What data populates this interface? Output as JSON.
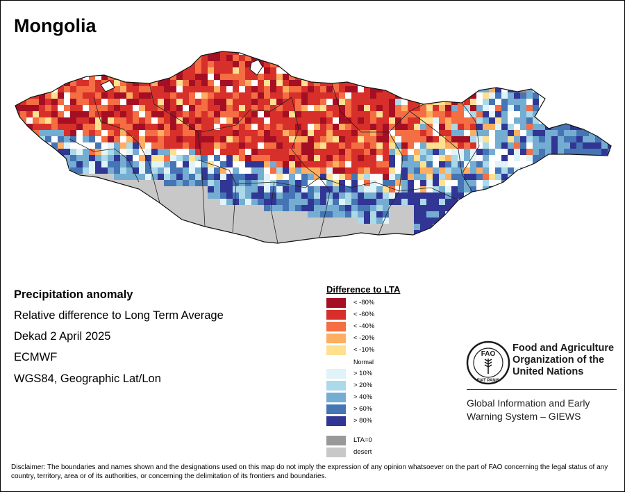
{
  "map": {
    "title": "Mongolia",
    "info_lines": [
      "Precipitation anomaly",
      "Relative difference to Long Term Average",
      "Dekad 2 April 2025",
      "ECMWF",
      "WGS84, Geographic Lat/Lon"
    ],
    "legend": {
      "title": "Difference to LTA",
      "items": [
        {
          "label": "< -80%",
          "color": "#a50f24"
        },
        {
          "label": "< -60%",
          "color": "#d7302a"
        },
        {
          "label": "< -40%",
          "color": "#f46d43"
        },
        {
          "label": "< -20%",
          "color": "#fdae61"
        },
        {
          "label": "< -10%",
          "color": "#fee090"
        },
        {
          "label": "> 10%",
          "color": "#e0f3f8"
        },
        {
          "label": "> 20%",
          "color": "#abd9e9"
        },
        {
          "label": "> 40%",
          "color": "#74add1"
        },
        {
          "label": "> 60%",
          "color": "#4575b4"
        },
        {
          "label": "> 80%",
          "color": "#313695"
        },
        {
          "label": "LTA=0",
          "color": "#999999"
        },
        {
          "label": "desert",
          "color": "#c8c8c8"
        }
      ],
      "normal_label": "Normal",
      "normal_color": "#ffffff"
    },
    "logo": {
      "name_lines": [
        "Food and Agriculture",
        "Organization of the",
        "United Nations"
      ],
      "logo_text": "FAO",
      "motto": "FIAT PANIS",
      "program_lines": [
        "Global Information and Early",
        "Warning System – GIEWS"
      ]
    },
    "disclaimer": "Disclaimer: The boundaries and names shown and the designations used on this map do not imply the expression of any opinion whatsoever on the part of FAO concerning the legal status of any country, territory, area or of its authorities, or concerning the delimitation of its frontiers and boundaries."
  }
}
